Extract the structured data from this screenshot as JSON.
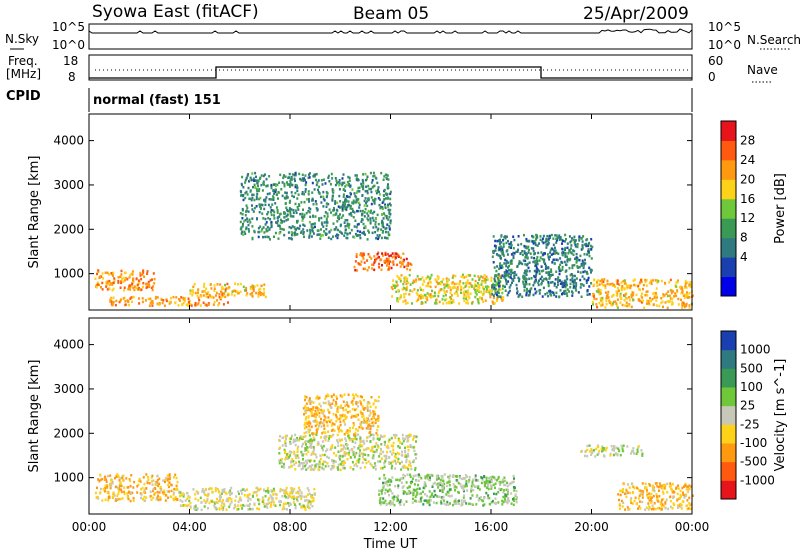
{
  "header": {
    "title": "Syowa East (fitACF)",
    "beam": "Beam 05",
    "date": "25/Apr/2009"
  },
  "status_panels": {
    "nsky_label": "N.Sky",
    "nsearch_label": "N.Search",
    "nsky_ticks": [
      "10^5",
      "10^0"
    ],
    "nsearch_ticks": [
      "10^5",
      "10^0"
    ],
    "freq_label_line1": "Freq.",
    "freq_label_line2": "[MHz]",
    "freq_ticks": [
      "18",
      "8"
    ],
    "nave_label": "Nave",
    "nave_ticks": [
      "60",
      "0"
    ],
    "cpid_label": "CPID",
    "cpid_value": "normal (fast) 151"
  },
  "chart_data": [
    {
      "type": "heatmap",
      "title": "",
      "ylabel": "Slant Range [km]",
      "xlabel": "",
      "xlim": [
        "00:00",
        "24:00"
      ],
      "ylim": [
        180,
        4600
      ],
      "ytick_labels": [
        "1000",
        "2000",
        "3000",
        "4000"
      ],
      "xtick_labels": [
        "00:00",
        "04:00",
        "08:00",
        "12:00",
        "16:00",
        "20:00",
        "00:00"
      ],
      "colorbar": {
        "label": "Power [dB]",
        "tick_labels": [
          "28",
          "24",
          "20",
          "16",
          "12",
          "8",
          "4"
        ],
        "range": [
          0,
          30
        ],
        "colors": [
          "#0000e8",
          "#1a3fb0",
          "#2f7a80",
          "#3a9a55",
          "#6ec83a",
          "#ffd21a",
          "#ff9a10",
          "#ff5a10",
          "#e8141c"
        ]
      },
      "regions": [
        {
          "t0": 0.2,
          "t1": 2.6,
          "r0": 650,
          "r1": 1100,
          "value": 22
        },
        {
          "t0": 0.8,
          "t1": 5.5,
          "r0": 300,
          "r1": 500,
          "value": 22
        },
        {
          "t0": 4.0,
          "t1": 7.0,
          "r0": 500,
          "r1": 800,
          "value": 20
        },
        {
          "t0": 6.0,
          "t1": 12.0,
          "r0": 1800,
          "r1": 3300,
          "value": 10
        },
        {
          "t0": 10.5,
          "t1": 12.8,
          "r0": 1100,
          "r1": 1500,
          "value": 24
        },
        {
          "t0": 12.0,
          "t1": 16.5,
          "r0": 350,
          "r1": 1000,
          "value": 18
        },
        {
          "t0": 16.0,
          "t1": 20.0,
          "r0": 500,
          "r1": 1900,
          "value": 9
        },
        {
          "t0": 20.0,
          "t1": 24.0,
          "r0": 250,
          "r1": 900,
          "value": 20
        }
      ]
    },
    {
      "type": "heatmap",
      "title": "",
      "ylabel": "Slant Range [km]",
      "xlabel": "Time UT",
      "xlim": [
        "00:00",
        "24:00"
      ],
      "ylim": [
        180,
        4600
      ],
      "ytick_labels": [
        "1000",
        "2000",
        "3000",
        "4000"
      ],
      "xtick_labels": [
        "00:00",
        "04:00",
        "08:00",
        "12:00",
        "16:00",
        "20:00",
        "00:00"
      ],
      "colorbar": {
        "label": "Velocity [m s^-1]",
        "tick_labels": [
          "1000",
          "500",
          "100",
          "25",
          "-25",
          "-100",
          "-500",
          "-1000"
        ],
        "range": [
          -1000,
          1000
        ],
        "colors": [
          "#e8141c",
          "#ff5a10",
          "#ff9a10",
          "#ffd21a",
          "#c8c8b8",
          "#6ec83a",
          "#3a9a55",
          "#2f7a80",
          "#1a3fb0"
        ]
      },
      "regions": [
        {
          "t0": 0.2,
          "t1": 3.5,
          "r0": 500,
          "r1": 1100,
          "value": -300
        },
        {
          "t0": 3.5,
          "t1": 9.0,
          "r0": 300,
          "r1": 800,
          "value": -60
        },
        {
          "t0": 7.5,
          "t1": 13.0,
          "r0": 1200,
          "r1": 2000,
          "value": 0
        },
        {
          "t0": 8.5,
          "t1": 11.5,
          "r0": 2000,
          "r1": 2900,
          "value": -300
        },
        {
          "t0": 11.5,
          "t1": 17.0,
          "r0": 400,
          "r1": 1100,
          "value": 150
        },
        {
          "t0": 19.5,
          "t1": 22.0,
          "r0": 1500,
          "r1": 1750,
          "value": 0
        },
        {
          "t0": 21.0,
          "t1": 24.0,
          "r0": 300,
          "r1": 900,
          "value": -300
        }
      ]
    }
  ]
}
